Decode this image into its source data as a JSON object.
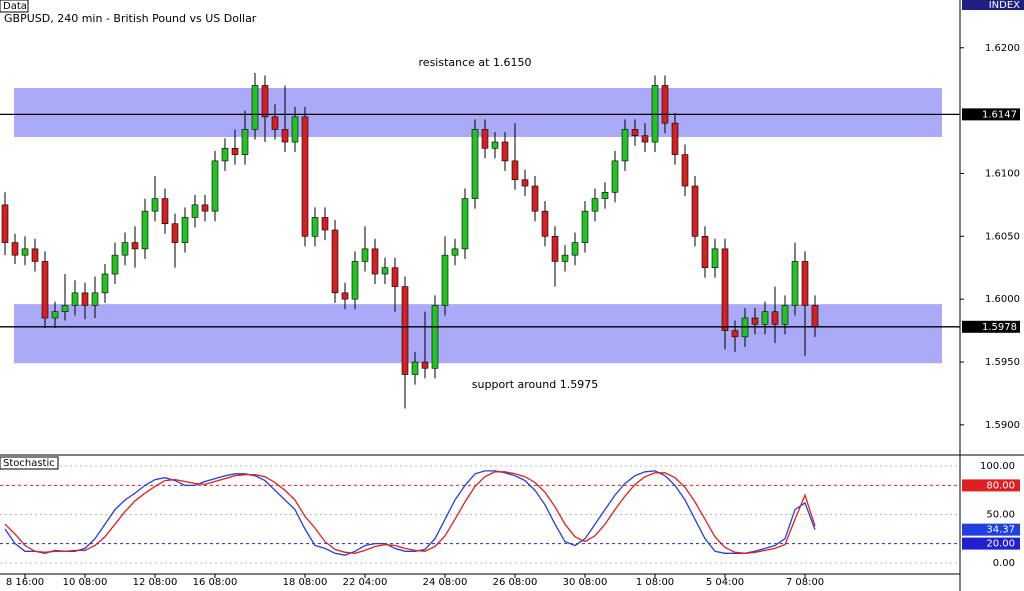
{
  "chart_data": [
    {
      "type": "candlestick",
      "title": "GBPUSD, 240 min - British Pound vs US Dollar",
      "tag": "Data",
      "corner_label": "INDEX",
      "annotations": [
        "resistance at 1.6150",
        "support around 1.5975"
      ],
      "up_color": "#22c322",
      "down_color": "#d42020",
      "band_color": "#aaaaf8",
      "bands": [
        [
          1.6129,
          1.6168
        ],
        [
          1.5949,
          1.5996
        ]
      ],
      "hlines": [
        1.6147,
        1.5978
      ],
      "xlim": [
        -0.5,
        95.5
      ],
      "ylim": [
        1.5876,
        1.6238
      ],
      "yticks": [
        {
          "value": 1.59,
          "label": "1.5900"
        },
        {
          "value": 1.595,
          "label": "1.5950"
        },
        {
          "value": 1.6,
          "label": "1.6000"
        },
        {
          "value": 1.605,
          "label": "1.6050"
        },
        {
          "value": 1.61,
          "label": "1.6100"
        },
        {
          "value": 1.62,
          "label": "1.6200"
        }
      ],
      "open": [
        1.6075,
        1.6045,
        1.6035,
        1.604,
        1.603,
        1.5985,
        1.599,
        1.5995,
        1.6005,
        1.5995,
        1.6005,
        1.602,
        1.6035,
        1.6045,
        1.604,
        1.607,
        1.608,
        1.606,
        1.6045,
        1.6065,
        1.6075,
        1.607,
        1.611,
        1.612,
        1.6115,
        1.6135,
        1.617,
        1.6145,
        1.6135,
        1.6125,
        1.6145,
        1.605,
        1.6065,
        1.6055,
        1.6005,
        1.6,
        1.603,
        1.604,
        1.602,
        1.6025,
        1.601,
        1.594,
        1.595,
        1.5945,
        1.5995,
        1.6035,
        1.604,
        1.608,
        1.6135,
        1.612,
        1.6125,
        1.611,
        1.6095,
        1.609,
        1.607,
        1.605,
        1.603,
        1.6035,
        1.6045,
        1.607,
        1.608,
        1.6085,
        1.611,
        1.6135,
        1.613,
        1.6125,
        1.617,
        1.614,
        1.6115,
        1.609,
        1.605,
        1.6025,
        1.604,
        1.5975,
        1.597,
        1.5985,
        1.598,
        1.599,
        1.598,
        1.5995,
        1.603,
        1.5995
      ],
      "high": [
        1.6085,
        1.6052,
        1.605,
        1.6048,
        1.6038,
        1.5998,
        1.602,
        1.6015,
        1.6013,
        1.6018,
        1.6028,
        1.6045,
        1.6053,
        1.6058,
        1.608,
        1.6098,
        1.6088,
        1.6068,
        1.6073,
        1.6083,
        1.6083,
        1.6118,
        1.6128,
        1.6135,
        1.615,
        1.618,
        1.6178,
        1.6155,
        1.617,
        1.6153,
        1.6153,
        1.6073,
        1.6073,
        1.6063,
        1.6013,
        1.6038,
        1.6058,
        1.6048,
        1.6033,
        1.6033,
        1.6018,
        1.5958,
        1.599,
        1.6003,
        1.605,
        1.6048,
        1.6088,
        1.6143,
        1.6143,
        1.6133,
        1.6133,
        1.614,
        1.6103,
        1.6098,
        1.6078,
        1.6058,
        1.6043,
        1.6053,
        1.6078,
        1.6088,
        1.6093,
        1.6118,
        1.6143,
        1.6143,
        1.614,
        1.6178,
        1.6178,
        1.6148,
        1.6123,
        1.6098,
        1.6058,
        1.6048,
        1.6048,
        1.5983,
        1.5993,
        1.5993,
        1.5998,
        1.601,
        1.6003,
        1.6045,
        1.6038,
        1.6003
      ],
      "low": [
        1.6035,
        1.6028,
        1.6027,
        1.6022,
        1.5977,
        1.5977,
        1.5983,
        1.5987,
        1.5984,
        1.5985,
        1.5997,
        1.6012,
        1.6027,
        1.6025,
        1.6032,
        1.6062,
        1.6052,
        1.6025,
        1.6037,
        1.6057,
        1.6062,
        1.6062,
        1.6102,
        1.6107,
        1.6107,
        1.6127,
        1.6125,
        1.6127,
        1.6117,
        1.6117,
        1.6042,
        1.6042,
        1.6047,
        1.5997,
        1.5992,
        1.5992,
        1.6022,
        1.6012,
        1.6012,
        1.599,
        1.5913,
        1.5932,
        1.5937,
        1.5937,
        1.5987,
        1.6027,
        1.6032,
        1.6072,
        1.6112,
        1.6112,
        1.6102,
        1.6087,
        1.6082,
        1.6062,
        1.6042,
        1.601,
        1.6022,
        1.6027,
        1.6037,
        1.6062,
        1.6072,
        1.6077,
        1.6102,
        1.6122,
        1.6117,
        1.6117,
        1.6132,
        1.6107,
        1.6082,
        1.6042,
        1.6017,
        1.6017,
        1.596,
        1.5958,
        1.5962,
        1.5972,
        1.5972,
        1.5965,
        1.5972,
        1.5987,
        1.5955,
        1.597
      ],
      "close": [
        1.6045,
        1.6035,
        1.604,
        1.603,
        1.5985,
        1.599,
        1.5995,
        1.6005,
        1.5995,
        1.6005,
        1.602,
        1.6035,
        1.6045,
        1.604,
        1.607,
        1.608,
        1.606,
        1.6045,
        1.6065,
        1.6075,
        1.607,
        1.611,
        1.612,
        1.6115,
        1.6135,
        1.617,
        1.6145,
        1.6135,
        1.6125,
        1.6145,
        1.605,
        1.6065,
        1.6055,
        1.6005,
        1.6,
        1.603,
        1.604,
        1.602,
        1.6025,
        1.601,
        1.594,
        1.595,
        1.5945,
        1.5995,
        1.6035,
        1.604,
        1.608,
        1.6135,
        1.612,
        1.6125,
        1.611,
        1.6095,
        1.609,
        1.607,
        1.605,
        1.603,
        1.6035,
        1.6045,
        1.607,
        1.608,
        1.6085,
        1.611,
        1.6135,
        1.613,
        1.6125,
        1.617,
        1.614,
        1.6115,
        1.609,
        1.605,
        1.6025,
        1.604,
        1.5975,
        1.597,
        1.5985,
        1.598,
        1.599,
        1.598,
        1.5995,
        1.603,
        1.5995,
        1.5978
      ]
    },
    {
      "type": "line",
      "title": "Stochastic",
      "xlim": [
        -0.5,
        95.5
      ],
      "ylim": [
        -12.4,
        109.3
      ],
      "yticks": [
        {
          "value": 100,
          "label": "100.00"
        },
        {
          "value": 50,
          "label": "50.00"
        },
        {
          "value": 0,
          "label": "0.00"
        }
      ],
      "levels": [
        {
          "value": 80,
          "label": "80.00",
          "color": "#e02020"
        },
        {
          "value": 20,
          "label": "20.00",
          "color": "#2020d0"
        }
      ],
      "xticks": [
        {
          "value": 2,
          "label": "8 16:00"
        },
        {
          "value": 8,
          "label": "10 08:00"
        },
        {
          "value": 15,
          "label": "12 08:00"
        },
        {
          "value": 21,
          "label": "16 08:00"
        },
        {
          "value": 30,
          "label": "18 08:00"
        },
        {
          "value": 36,
          "label": "22 04:00"
        },
        {
          "value": 44,
          "label": "24 08:00"
        },
        {
          "value": 51,
          "label": "26 08:00"
        },
        {
          "value": 58,
          "label": "30 08:00"
        },
        {
          "value": 65,
          "label": "1 08:00"
        },
        {
          "value": 72,
          "label": "5 04:00"
        },
        {
          "value": 80,
          "label": "7 08:00"
        }
      ],
      "series": [
        {
          "color": "#2040e0",
          "values": [
            35,
            20,
            12,
            12,
            10,
            13,
            12,
            12,
            15,
            25,
            40,
            55,
            65,
            72,
            80,
            86,
            88,
            85,
            80,
            80,
            84,
            87,
            90,
            92,
            92,
            90,
            85,
            75,
            65,
            55,
            35,
            18,
            15,
            10,
            8,
            12,
            18,
            20,
            20,
            15,
            12,
            12,
            14,
            25,
            45,
            65,
            80,
            92,
            95,
            95,
            93,
            90,
            85,
            75,
            60,
            40,
            22,
            18,
            25,
            40,
            55,
            70,
            82,
            90,
            94,
            95,
            90,
            80,
            65,
            45,
            25,
            12,
            10,
            10,
            10,
            12,
            15,
            18,
            25,
            55,
            62,
            34.37
          ]
        },
        {
          "color": "#e02020",
          "values": [
            40,
            30,
            18,
            12,
            11,
            12,
            12,
            13,
            13,
            18,
            27,
            40,
            53,
            64,
            72,
            79,
            85,
            86,
            84,
            82,
            81,
            84,
            87,
            90,
            91,
            91,
            89,
            83,
            75,
            65,
            48,
            36,
            22,
            14,
            11,
            10,
            13,
            17,
            19,
            18,
            15,
            13,
            12,
            17,
            28,
            45,
            63,
            79,
            89,
            94,
            94,
            92,
            89,
            83,
            73,
            58,
            40,
            27,
            22,
            28,
            40,
            55,
            69,
            81,
            89,
            93,
            93,
            88,
            78,
            63,
            45,
            27,
            16,
            11,
            10,
            11,
            13,
            15,
            19,
            45,
            70,
            38
          ]
        }
      ]
    }
  ]
}
